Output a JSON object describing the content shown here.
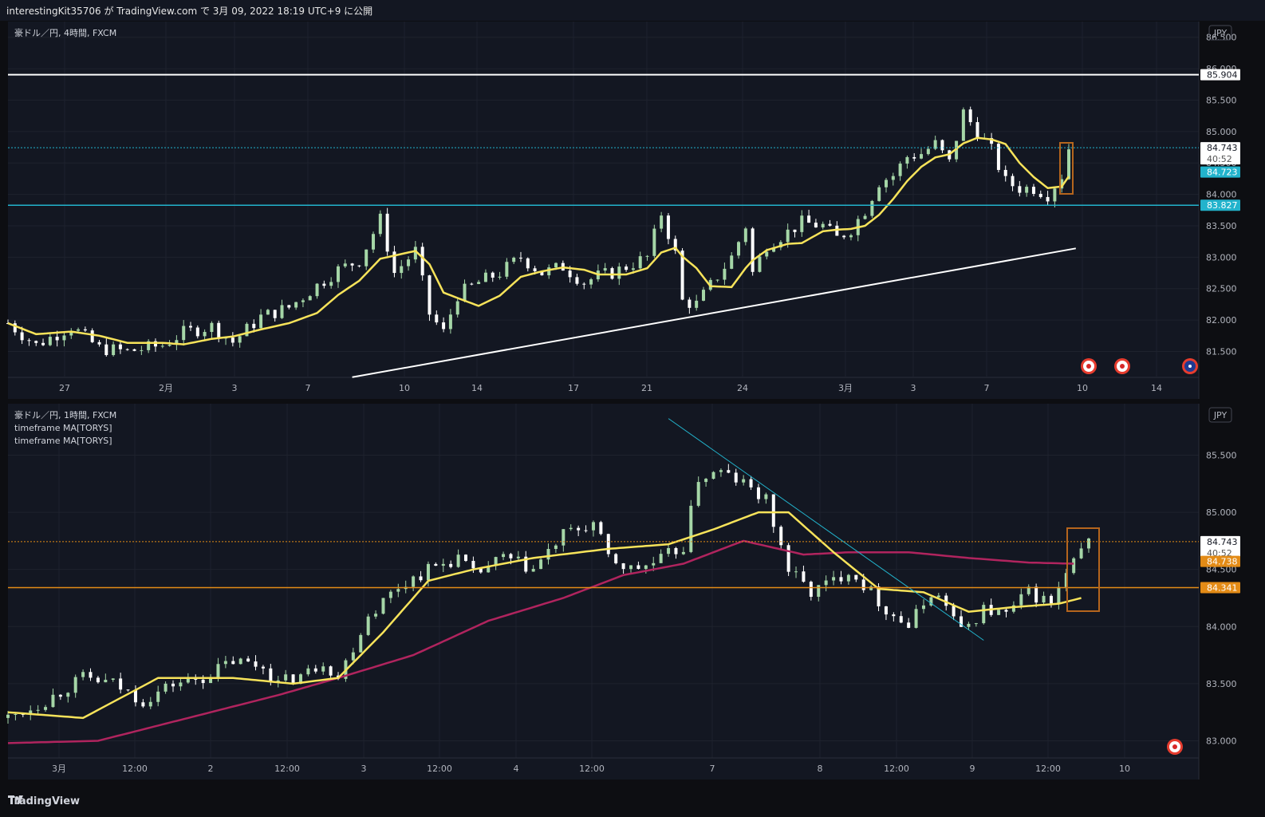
{
  "header": {
    "publish_info": "interestingKit35706 が TradingView.com で 3月 09, 2022 18:19 UTC+9 に公開"
  },
  "footer": {
    "brand": "TradingView"
  },
  "colors": {
    "bg": "#131722",
    "grid": "#1e222d",
    "up": "#a5d6a7",
    "down": "#ffffff",
    "ma_yellow": "#f7e35a",
    "ma_crimson": "#b0245e",
    "cyan": "#22b3cc",
    "orange": "#e38b16",
    "box": "#b5651d",
    "white_line": "#ffffff"
  },
  "chart_data": [
    {
      "type": "candlestick",
      "title": "豪ドル／円, 4時間, FXCM",
      "legend": [],
      "currency": "JPY",
      "ylim": [
        81.1,
        86.75
      ],
      "y_ticks": [
        "86.500",
        "86.000",
        "85.500",
        "85.000",
        "84.500",
        "84.000",
        "83.500",
        "83.000",
        "82.500",
        "82.000",
        "81.500"
      ],
      "x_ticks": [
        "27",
        "2月",
        "3",
        "7",
        "10",
        "14",
        "17",
        "21",
        "24",
        "3月",
        "3",
        "7",
        "10",
        "14"
      ],
      "close_path": [
        [
          0,
          81.95
        ],
        [
          4,
          81.6
        ],
        [
          9,
          81.9
        ],
        [
          13,
          81.55
        ],
        [
          17,
          81.5
        ],
        [
          22,
          81.6
        ],
        [
          25,
          81.8
        ],
        [
          29,
          81.9
        ],
        [
          32,
          81.65
        ],
        [
          36,
          82.05
        ],
        [
          40,
          82.2
        ],
        [
          44,
          82.55
        ],
        [
          47,
          82.8
        ],
        [
          50,
          82.95
        ],
        [
          53,
          83.6
        ],
        [
          55,
          82.75
        ],
        [
          58,
          83.1
        ],
        [
          60,
          82.1
        ],
        [
          62,
          81.8
        ],
        [
          64,
          82.4
        ],
        [
          67,
          82.6
        ],
        [
          70,
          82.75
        ],
        [
          73,
          83.0
        ],
        [
          76,
          82.75
        ],
        [
          79,
          82.85
        ],
        [
          82,
          82.6
        ],
        [
          84,
          82.7
        ],
        [
          86,
          82.75
        ],
        [
          88,
          82.85
        ],
        [
          91,
          83.0
        ],
        [
          93,
          83.7
        ],
        [
          95,
          83.05
        ],
        [
          96,
          82.3
        ],
        [
          98,
          82.25
        ],
        [
          100,
          82.55
        ],
        [
          103,
          83.0
        ],
        [
          105,
          83.5
        ],
        [
          106,
          82.75
        ],
        [
          108,
          83.2
        ],
        [
          111,
          83.4
        ],
        [
          113,
          83.55
        ],
        [
          116,
          83.5
        ],
        [
          118,
          83.3
        ],
        [
          120,
          83.45
        ],
        [
          122,
          83.75
        ],
        [
          124,
          84.2
        ],
        [
          126,
          84.3
        ],
        [
          128,
          84.6
        ],
        [
          130,
          84.65
        ],
        [
          132,
          84.8
        ],
        [
          134,
          84.5
        ],
        [
          136,
          85.3
        ],
        [
          138,
          85.0
        ],
        [
          140,
          84.7
        ],
        [
          142,
          84.2
        ],
        [
          144,
          84.1
        ],
        [
          146,
          84.1
        ],
        [
          148,
          84.0
        ],
        [
          150,
          84.3
        ],
        [
          151,
          84.74
        ]
      ],
      "candle_count": 152,
      "lines": [
        {
          "label": "85.904",
          "value": 85.904,
          "style": "solid",
          "color": "#ffffff"
        },
        {
          "label": "84.743",
          "value": 84.743,
          "style": "dotted",
          "color": "#22b3cc",
          "sublabel": "40:52"
        },
        {
          "label": "84.723",
          "value": 84.723,
          "style": "tag",
          "color": "#22b3cc"
        },
        {
          "label": "83.827",
          "value": 83.827,
          "style": "solid",
          "color": "#22b3cc"
        }
      ],
      "trendline": {
        "x": [
          49,
          152
        ],
        "y": [
          81.09,
          83.14
        ]
      },
      "annotations": [
        "box-last-candle",
        "event-jp",
        "event-jp",
        "event-au"
      ]
    },
    {
      "type": "candlestick",
      "title": "豪ドル／円, 1時間, FXCM",
      "legend": [
        "timeframe MA[TORYS]",
        "timeframe MA[TORYS]"
      ],
      "currency": "JPY",
      "ylim": [
        82.85,
        85.95
      ],
      "y_ticks": [
        "85.500",
        "85.000",
        "84.500",
        "84.000",
        "83.500",
        "83.000"
      ],
      "x_ticks": [
        "3月",
        "12:00",
        "2",
        "12:00",
        "3",
        "12:00",
        "4",
        "12:00",
        "7",
        "8",
        "12:00",
        "9",
        "12:00",
        "10"
      ],
      "close_path": [
        [
          0,
          83.2
        ],
        [
          5,
          83.35
        ],
        [
          10,
          83.55
        ],
        [
          14,
          83.5
        ],
        [
          18,
          83.35
        ],
        [
          22,
          83.5
        ],
        [
          26,
          83.55
        ],
        [
          30,
          83.7
        ],
        [
          34,
          83.65
        ],
        [
          36,
          83.5
        ],
        [
          40,
          83.6
        ],
        [
          42,
          83.7
        ],
        [
          44,
          83.55
        ],
        [
          48,
          84.1
        ],
        [
          52,
          84.35
        ],
        [
          56,
          84.5
        ],
        [
          60,
          84.6
        ],
        [
          62,
          84.45
        ],
        [
          66,
          84.6
        ],
        [
          70,
          84.5
        ],
        [
          74,
          84.8
        ],
        [
          78,
          84.9
        ],
        [
          80,
          84.6
        ],
        [
          83,
          84.5
        ],
        [
          86,
          84.55
        ],
        [
          90,
          84.7
        ],
        [
          92,
          85.3
        ],
        [
          95,
          85.35
        ],
        [
          98,
          85.25
        ],
        [
          101,
          85.1
        ],
        [
          104,
          84.5
        ],
        [
          107,
          84.3
        ],
        [
          110,
          84.4
        ],
        [
          112,
          84.5
        ],
        [
          115,
          84.3
        ],
        [
          117,
          84.15
        ],
        [
          120,
          84.0
        ],
        [
          123,
          84.3
        ],
        [
          125,
          84.2
        ],
        [
          127,
          83.95
        ],
        [
          130,
          84.15
        ],
        [
          133,
          84.1
        ],
        [
          136,
          84.3
        ],
        [
          139,
          84.2
        ],
        [
          141,
          84.45
        ],
        [
          143,
          84.65
        ],
        [
          144,
          84.74
        ]
      ],
      "candle_count": 145,
      "ma_yellow": [
        [
          0,
          83.25
        ],
        [
          10,
          83.2
        ],
        [
          20,
          83.55
        ],
        [
          30,
          83.55
        ],
        [
          38,
          83.5
        ],
        [
          44,
          83.55
        ],
        [
          50,
          83.95
        ],
        [
          56,
          84.4
        ],
        [
          62,
          84.5
        ],
        [
          70,
          84.6
        ],
        [
          80,
          84.68
        ],
        [
          88,
          84.72
        ],
        [
          94,
          84.85
        ],
        [
          100,
          85.0
        ],
        [
          104,
          85.0
        ],
        [
          110,
          84.65
        ],
        [
          116,
          84.33
        ],
        [
          122,
          84.3
        ],
        [
          128,
          84.13
        ],
        [
          134,
          84.17
        ],
        [
          140,
          84.2
        ],
        [
          143,
          84.25
        ]
      ],
      "ma_crimson": [
        [
          0,
          82.98
        ],
        [
          12,
          83.0
        ],
        [
          24,
          83.2
        ],
        [
          36,
          83.4
        ],
        [
          44,
          83.55
        ],
        [
          54,
          83.75
        ],
        [
          64,
          84.05
        ],
        [
          74,
          84.25
        ],
        [
          82,
          84.45
        ],
        [
          90,
          84.55
        ],
        [
          98,
          84.75
        ],
        [
          106,
          84.63
        ],
        [
          112,
          84.65
        ],
        [
          120,
          84.65
        ],
        [
          128,
          84.6
        ],
        [
          136,
          84.56
        ],
        [
          142,
          84.55
        ]
      ],
      "lines": [
        {
          "label": "84.743",
          "value": 84.743,
          "style": "dotted",
          "color": "#e38b16",
          "sublabel": "40:52"
        },
        {
          "label": "84.738",
          "value": 84.738,
          "style": "tag",
          "color": "#e38b16"
        },
        {
          "label": "84.341",
          "value": 84.341,
          "style": "solid",
          "color": "#e38b16"
        }
      ],
      "trendline": {
        "x": [
          88,
          130
        ],
        "y": [
          85.82,
          83.88
        ]
      },
      "annotations": [
        "box-last-candles",
        "event-jp"
      ]
    }
  ]
}
